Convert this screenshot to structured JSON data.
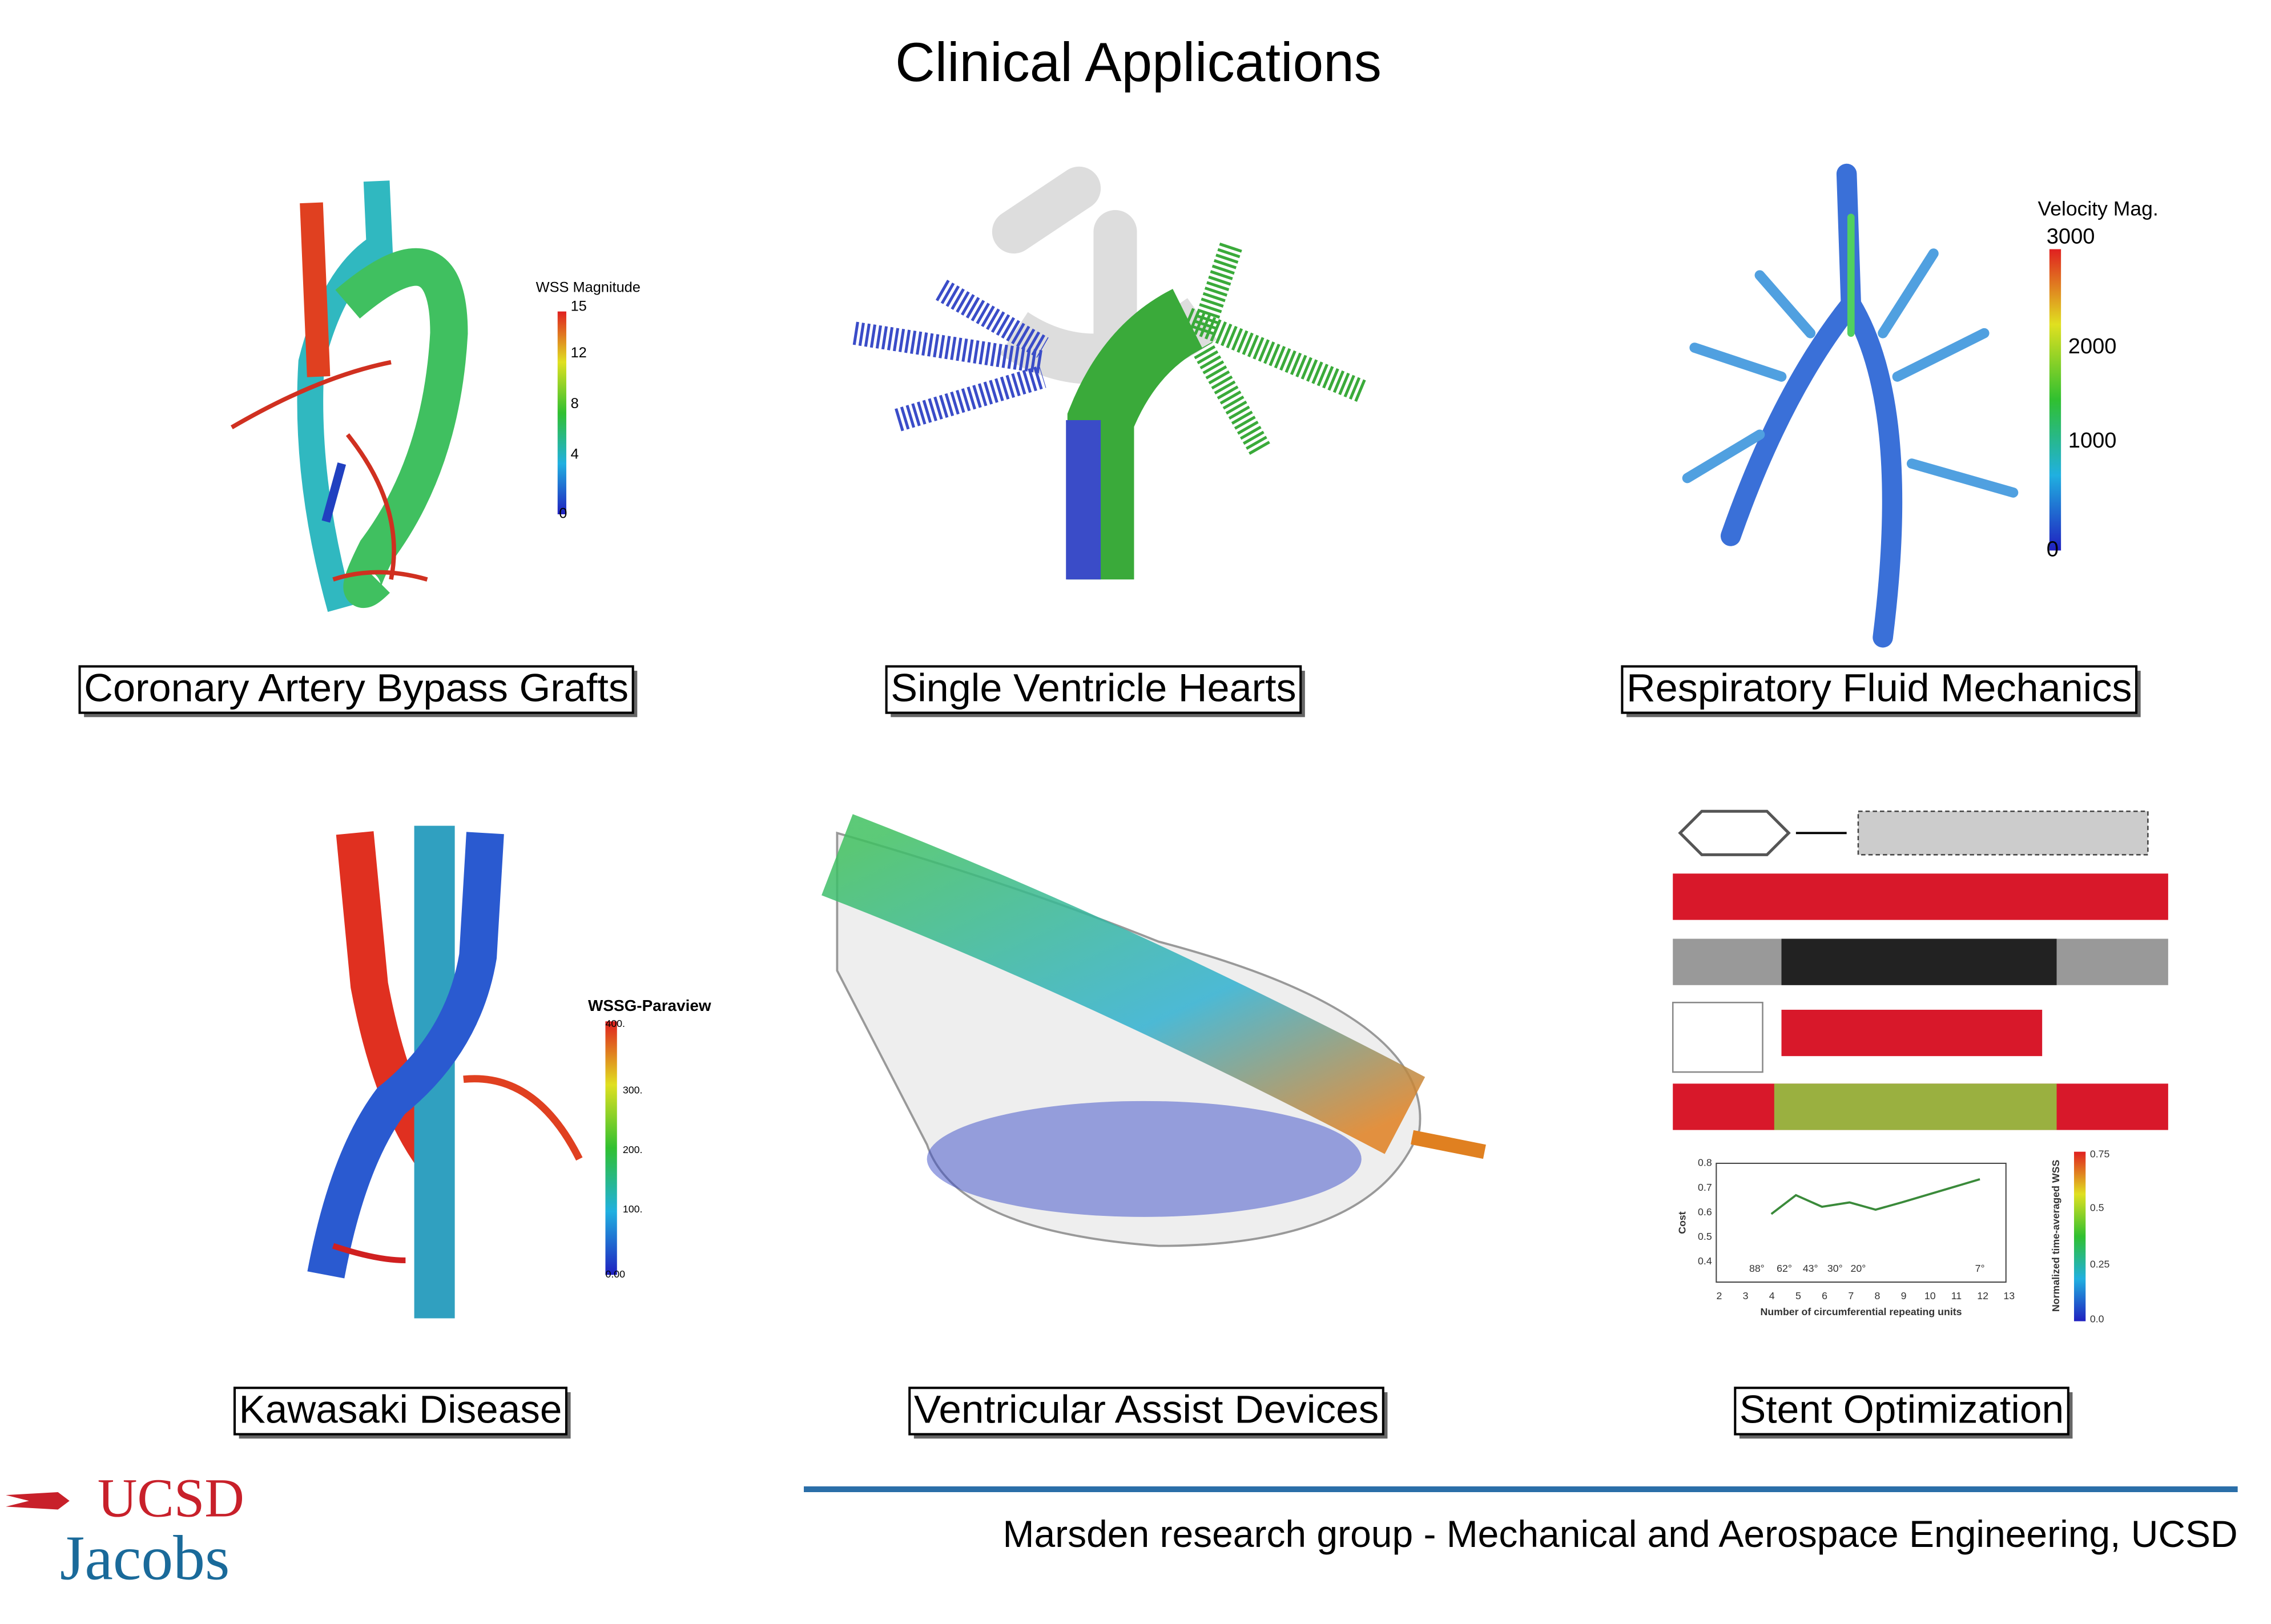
{
  "title": "Clinical Applications",
  "panels": [
    {
      "label": "Coronary Artery Bypass Grafts",
      "colorbar": {
        "title": "WSS Magnitude",
        "ticks": [
          "15",
          "12",
          "8",
          "4",
          "0"
        ]
      }
    },
    {
      "label": "Single Ventricle Hearts"
    },
    {
      "label": "Respiratory Fluid Mechanics",
      "colorbar": {
        "title": "Velocity Mag.",
        "ticks": [
          "3000",
          "2000",
          "1000",
          "0"
        ]
      }
    },
    {
      "label": "Kawasaki Disease",
      "colorbar": {
        "title": "WSSG-Paraview",
        "ticks": [
          "400.",
          "300.",
          "200.",
          "100.",
          "0.00"
        ]
      }
    },
    {
      "label": "Ventricular Assist Devices"
    },
    {
      "label": "Stent Optimization",
      "plot": {
        "x_label": "Number of circumferential repeating units",
        "y_label": "Cost",
        "yticks": [
          "0.8",
          "0.7",
          "0.6",
          "0.5",
          "0.4"
        ],
        "xticks": [
          "2",
          "3",
          "4",
          "5",
          "6",
          "7",
          "8",
          "9",
          "10",
          "11",
          "12",
          "13"
        ],
        "angles": [
          "88°",
          "62°",
          "43°",
          "30°",
          "20°",
          "7°"
        ],
        "colorbar_title": "Normalized time-averaged WSS",
        "colorbar_ticks": [
          "0.75",
          "0.5",
          "0.25",
          "0.0"
        ]
      }
    }
  ],
  "footer": {
    "logo_top": "UCSD",
    "logo_bottom": "Jacobs",
    "text": "Marsden research group - Mechanical and Aerospace Engineering, UCSD"
  }
}
